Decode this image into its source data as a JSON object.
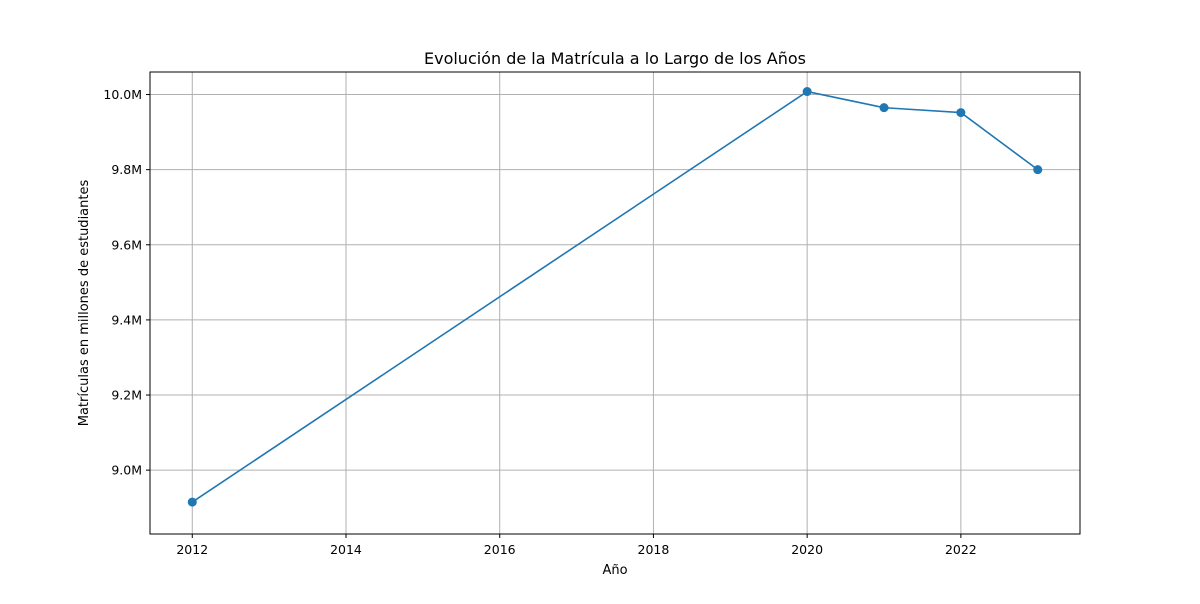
{
  "chart_data": {
    "type": "line",
    "title": "Evolución de la Matrícula a lo Largo de los Años",
    "xlabel": "Año",
    "ylabel": "Matrículas en millones de estudiantes",
    "x": [
      2012,
      2020,
      2021,
      2022,
      2023
    ],
    "series": [
      {
        "values": [
          8.915,
          10.008,
          9.965,
          9.952,
          9.8
        ],
        "color": "#1f77b4",
        "marker": "circle"
      }
    ],
    "xlim": [
      2011.45,
      2023.55
    ],
    "ylim": [
      8.83,
      10.06
    ],
    "xticks": [
      2012,
      2014,
      2016,
      2018,
      2020,
      2022
    ],
    "xtick_labels": [
      "2012",
      "2014",
      "2016",
      "2018",
      "2020",
      "2022"
    ],
    "yticks": [
      9.0,
      9.2,
      9.4,
      9.6,
      9.8,
      10.0
    ],
    "ytick_labels": [
      "9.0M",
      "9.2M",
      "9.4M",
      "9.6M",
      "9.8M",
      "10.0M"
    ],
    "grid": true,
    "legend": false
  }
}
